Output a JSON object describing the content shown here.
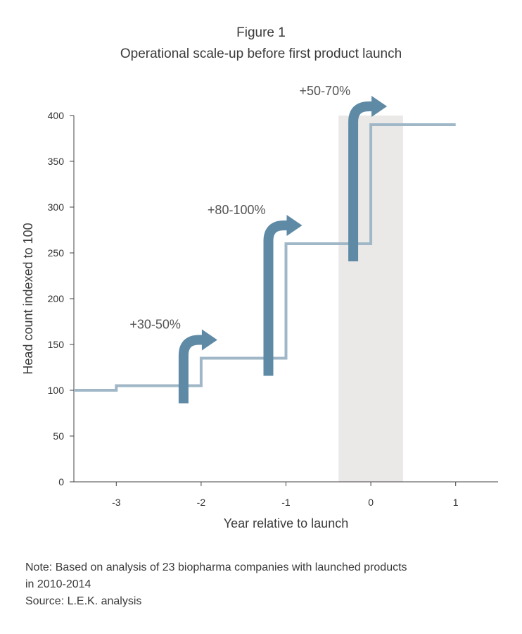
{
  "figure_label": "Figure 1",
  "title": "Operational scale-up before first product launch",
  "chart_data": {
    "type": "line",
    "step": true,
    "ylabel": "Head count indexed to 100",
    "xlabel": "Year relative to launch",
    "ylim": [
      0,
      400
    ],
    "xlim": [
      -3.5,
      1.5
    ],
    "yticks": [
      0,
      50,
      100,
      150,
      200,
      250,
      300,
      350,
      400
    ],
    "xticks": [
      -3,
      -2,
      -1,
      0,
      1
    ],
    "x": [
      -3.5,
      -3,
      -2,
      -1,
      0,
      1
    ],
    "y": [
      100,
      105,
      135,
      260,
      390,
      390
    ],
    "highlight_band": [
      -0.38,
      0.38
    ],
    "annotations": [
      {
        "text": "+30-50%",
        "x": -2
      },
      {
        "text": "+80-100%",
        "x": -1
      },
      {
        "text": "+50-70%",
        "x": 0
      }
    ],
    "grid": false,
    "line_color": "#9fb7c7",
    "arrow_color": "#5f8aa5",
    "band_color": "#ebe9e8"
  },
  "notes": {
    "note": "Note: Based on analysis of 23 biopharma companies with launched products\nin 2010-2014",
    "source": "Source: L.E.K. analysis"
  }
}
